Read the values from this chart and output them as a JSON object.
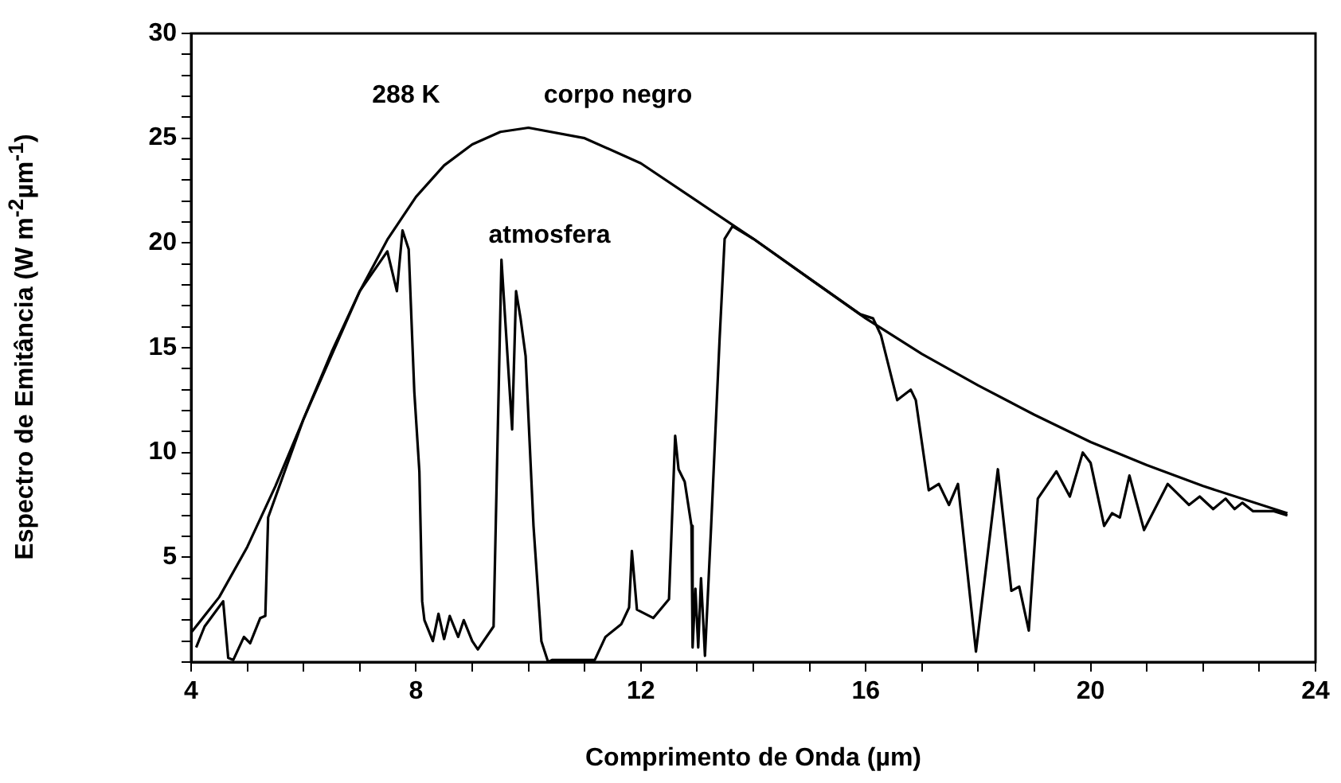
{
  "chart_data": {
    "type": "line",
    "xlabel": "Comprimento de Onda (µm)",
    "ylabel": "Espectro de Emitância (W m$^{-2}$µm$^{-1}$)",
    "xlim": [
      4,
      24
    ],
    "ylim": [
      0,
      30
    ],
    "xticks": [
      4,
      {
        "value": 5,
        "label": null
      },
      {
        "value": 6,
        "label": null
      },
      {
        "value": 7,
        "label": null
      },
      8,
      {
        "value": 9,
        "label": null
      },
      {
        "value": 10,
        "label": null
      },
      {
        "value": 11,
        "label": null
      },
      12,
      {
        "value": 13,
        "label": null
      },
      {
        "value": 14,
        "label": null
      },
      {
        "value": 15,
        "label": null
      },
      16,
      {
        "value": 17,
        "label": null
      },
      {
        "value": 18,
        "label": null
      },
      {
        "value": 19,
        "label": null
      },
      20,
      {
        "value": 21,
        "label": null
      },
      {
        "value": 22,
        "label": null
      },
      {
        "value": 23,
        "label": null
      },
      24
    ],
    "yticks": [
      {
        "value": 0,
        "label": null
      },
      {
        "value": 1,
        "label": null
      },
      {
        "value": 2,
        "label": null
      },
      {
        "value": 3,
        "label": null
      },
      {
        "value": 4,
        "label": null
      },
      5,
      {
        "value": 6,
        "label": null
      },
      {
        "value": 7,
        "label": null
      },
      {
        "value": 8,
        "label": null
      },
      {
        "value": 9,
        "label": null
      },
      10,
      {
        "value": 11,
        "label": null
      },
      {
        "value": 12,
        "label": null
      },
      {
        "value": 13,
        "label": null
      },
      {
        "value": 14,
        "label": null
      },
      15,
      {
        "value": 16,
        "label": null
      },
      {
        "value": 17,
        "label": null
      },
      {
        "value": 18,
        "label": null
      },
      {
        "value": 19,
        "label": null
      },
      20,
      {
        "value": 21,
        "label": null
      },
      {
        "value": 22,
        "label": null
      },
      {
        "value": 23,
        "label": null
      },
      {
        "value": 24,
        "label": null
      },
      25,
      {
        "value": 26,
        "label": null
      },
      {
        "value": 27,
        "label": null
      },
      {
        "value": 28,
        "label": null
      },
      {
        "value": 29,
        "label": null
      },
      30
    ],
    "marker": "none",
    "line_style": "solid",
    "series": [
      {
        "name": "corpo negro",
        "color": "#000000",
        "x": [
          4,
          4.5,
          5,
          5.5,
          6,
          6.5,
          7,
          7.5,
          8,
          8.5,
          9,
          9.5,
          10,
          11,
          12,
          13,
          14,
          15,
          16,
          17,
          18,
          19,
          20,
          21,
          22,
          23.5
        ],
        "values": [
          1.4,
          3.1,
          5.5,
          8.4,
          11.6,
          14.8,
          17.7,
          20.2,
          22.2,
          23.7,
          24.7,
          25.3,
          25.5,
          25.0,
          23.8,
          22.0,
          20.2,
          18.3,
          16.4,
          14.7,
          13.2,
          11.8,
          10.5,
          9.4,
          8.4,
          7.1
        ]
      },
      {
        "name": "atmosfera",
        "color": "#000000",
        "x": [
          4.09,
          4.24,
          4.57,
          4.66,
          4.75,
          4.94,
          5.05,
          5.23,
          5.32,
          5.37,
          6,
          7,
          7.49,
          7.66,
          7.76,
          7.87,
          7.97,
          8.06,
          8.11,
          8.15,
          8.3,
          8.4,
          8.5,
          8.6,
          8.75,
          8.85,
          9.0,
          9.1,
          9.38,
          9.52,
          9.71,
          9.78,
          9.86,
          9.95,
          10.09,
          10.23,
          10.35,
          10.42,
          11.18,
          11.37,
          11.65,
          11.79,
          11.84,
          11.93,
          12.22,
          12.5,
          12.61,
          12.67,
          12.78,
          12.9,
          12.92,
          12.97,
          13.02,
          13.07,
          13.14,
          13.25,
          13.4,
          13.49,
          13.63,
          14,
          15,
          15.9,
          16.13,
          16.27,
          16.56,
          16.8,
          16.89,
          17.12,
          17.3,
          17.48,
          17.64,
          17.96,
          18.35,
          18.59,
          18.73,
          18.9,
          19.06,
          19.39,
          19.63,
          19.86,
          20.0,
          20.24,
          20.38,
          20.52,
          20.69,
          20.95,
          21.37,
          21.75,
          21.94,
          22.18,
          22.4,
          22.56,
          22.7,
          22.89,
          23.26,
          23.5
        ],
        "values": [
          0.7,
          1.7,
          2.9,
          0.2,
          0.1,
          1.2,
          0.9,
          2.1,
          2.2,
          6.9,
          11.6,
          17.7,
          19.6,
          17.7,
          20.6,
          19.7,
          12.9,
          9.1,
          2.9,
          2.0,
          1.0,
          2.3,
          1.1,
          2.2,
          1.2,
          2.0,
          1.0,
          0.6,
          1.7,
          19.2,
          11.1,
          17.7,
          16.4,
          14.6,
          6.5,
          1.0,
          0,
          0.1,
          0.1,
          1.2,
          1.8,
          2.6,
          5.3,
          2.5,
          2.1,
          3.0,
          10.8,
          9.2,
          8.6,
          6.5,
          0.7,
          3.5,
          0.7,
          4.0,
          0.3,
          6.5,
          15.4,
          20.2,
          20.8,
          20.2,
          18.3,
          16.6,
          16.4,
          15.6,
          12.5,
          13.0,
          12.5,
          8.2,
          8.5,
          7.5,
          8.5,
          0.5,
          9.2,
          3.4,
          3.6,
          1.5,
          7.8,
          9.1,
          7.9,
          10.0,
          9.5,
          6.5,
          7.1,
          6.9,
          8.9,
          6.3,
          8.5,
          7.5,
          7.9,
          7.3,
          7.8,
          7.3,
          7.6,
          7.2,
          7.2,
          7.0
        ]
      }
    ],
    "annotations": [
      "288 K"
    ]
  }
}
